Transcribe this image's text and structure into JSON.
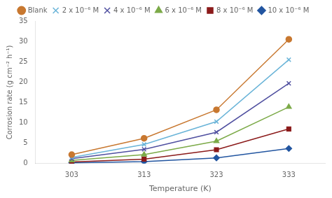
{
  "chart_data": {
    "type": "line",
    "x": [
      303,
      313,
      323,
      333
    ],
    "series": [
      {
        "name": "Blank",
        "color": "#c87830",
        "marker": "circle",
        "values": [
          2.2,
          6.2,
          13.2,
          30.5
        ]
      },
      {
        "name": "2 x 10⁻⁶ M",
        "color": "#6ab4d8",
        "marker": "x",
        "values": [
          1.5,
          4.7,
          10.3,
          25.5
        ]
      },
      {
        "name": "4 x 10⁻⁶ M",
        "color": "#5050a0",
        "marker": "x",
        "values": [
          1.2,
          3.5,
          7.7,
          19.7
        ]
      },
      {
        "name": "6 x 10⁻⁶ M",
        "color": "#7caa48",
        "marker": "triangle",
        "values": [
          0.8,
          2.2,
          5.5,
          13.9
        ]
      },
      {
        "name": "8 x 10⁻⁶ M",
        "color": "#8b1a1a",
        "marker": "square",
        "values": [
          0.4,
          1.1,
          3.4,
          8.5
        ]
      },
      {
        "name": "10 x 10⁻⁶ M",
        "color": "#2255a0",
        "marker": "diamond",
        "values": [
          0.2,
          0.5,
          1.4,
          3.7
        ]
      }
    ],
    "xlabel": "Temperature (K)",
    "ylabel": "Corrosion rate (g cm⁻² h⁻¹)",
    "xlim": [
      298,
      338
    ],
    "ylim": [
      0,
      35
    ],
    "xticks": [
      303,
      313,
      323,
      333
    ],
    "yticks": [
      0,
      5,
      10,
      15,
      20,
      25,
      30,
      35
    ],
    "grid": false,
    "legend": "top"
  }
}
